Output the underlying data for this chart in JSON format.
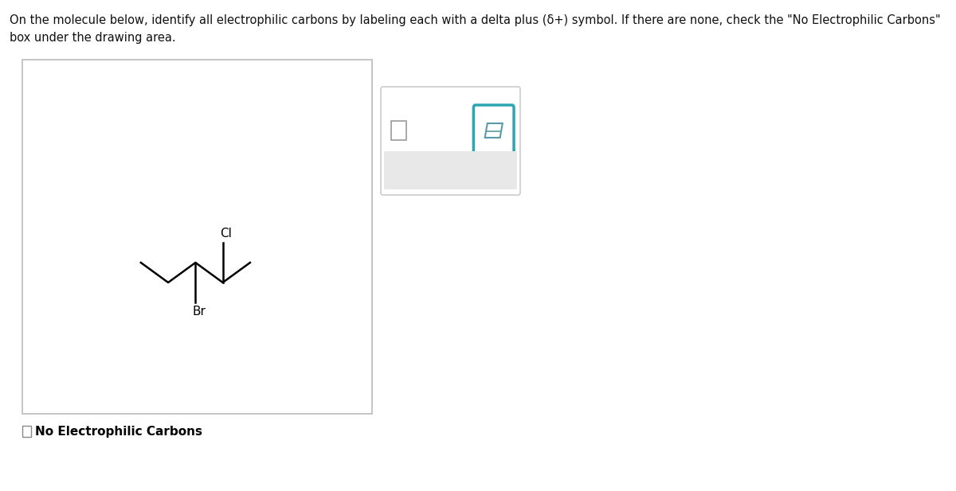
{
  "title_line1": "On the molecule below, identify all electrophilic carbons by labeling each with a delta plus (δ+) symbol. If there are none, check the \"No Electrophilic Carbons\"",
  "title_line2": "box under the drawing area.",
  "checkbox_label": "No Electrophilic Carbons",
  "molecule": {
    "Br_label": "Br",
    "Cl_label": "Cl",
    "bond_color": "#000000",
    "label_color": "#000000"
  },
  "toolbar": {
    "teal_color": "#2ba6b0",
    "x_color": "#aaaaaa",
    "undo_color": "#aaaaaa",
    "redo_color": "#aaaaaa",
    "eraser_icon_color": "#5a9aa8"
  },
  "bg_color": "#ffffff",
  "drawing_box_edgecolor": "#bbbbbb",
  "toolbar_bg": "#e8e8e8",
  "toolbar_border": "#cccccc"
}
